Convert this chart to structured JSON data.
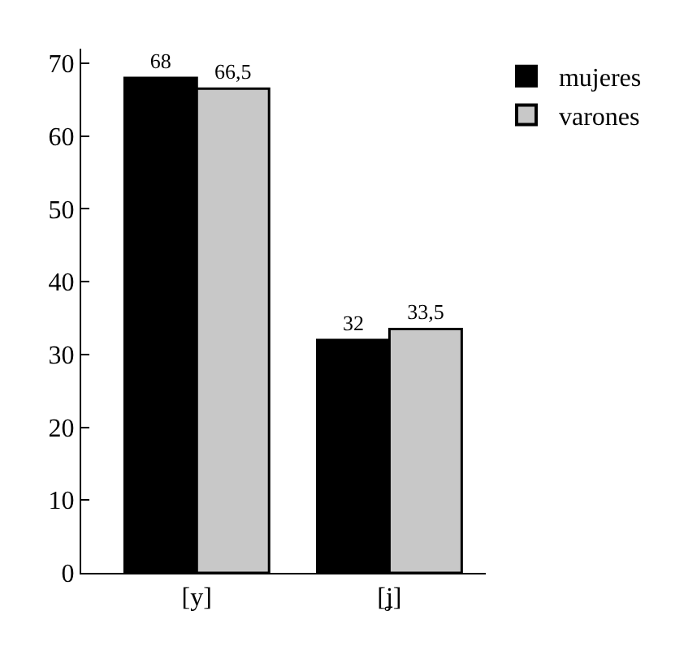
{
  "chart_data": {
    "type": "bar",
    "categories": [
      "[y]",
      "[ʝ]"
    ],
    "series": [
      {
        "name": "mujeres",
        "color": "#000000",
        "values": [
          68,
          32
        ],
        "value_labels": [
          "68",
          "32"
        ]
      },
      {
        "name": "varones",
        "color": "#c8c8c8",
        "values": [
          66.5,
          33.5
        ],
        "value_labels": [
          "66,5",
          "33,5"
        ]
      }
    ],
    "ylim": [
      0,
      72
    ],
    "yticks": [
      0,
      10,
      20,
      30,
      40,
      50,
      60,
      70
    ],
    "legend": "top right"
  }
}
